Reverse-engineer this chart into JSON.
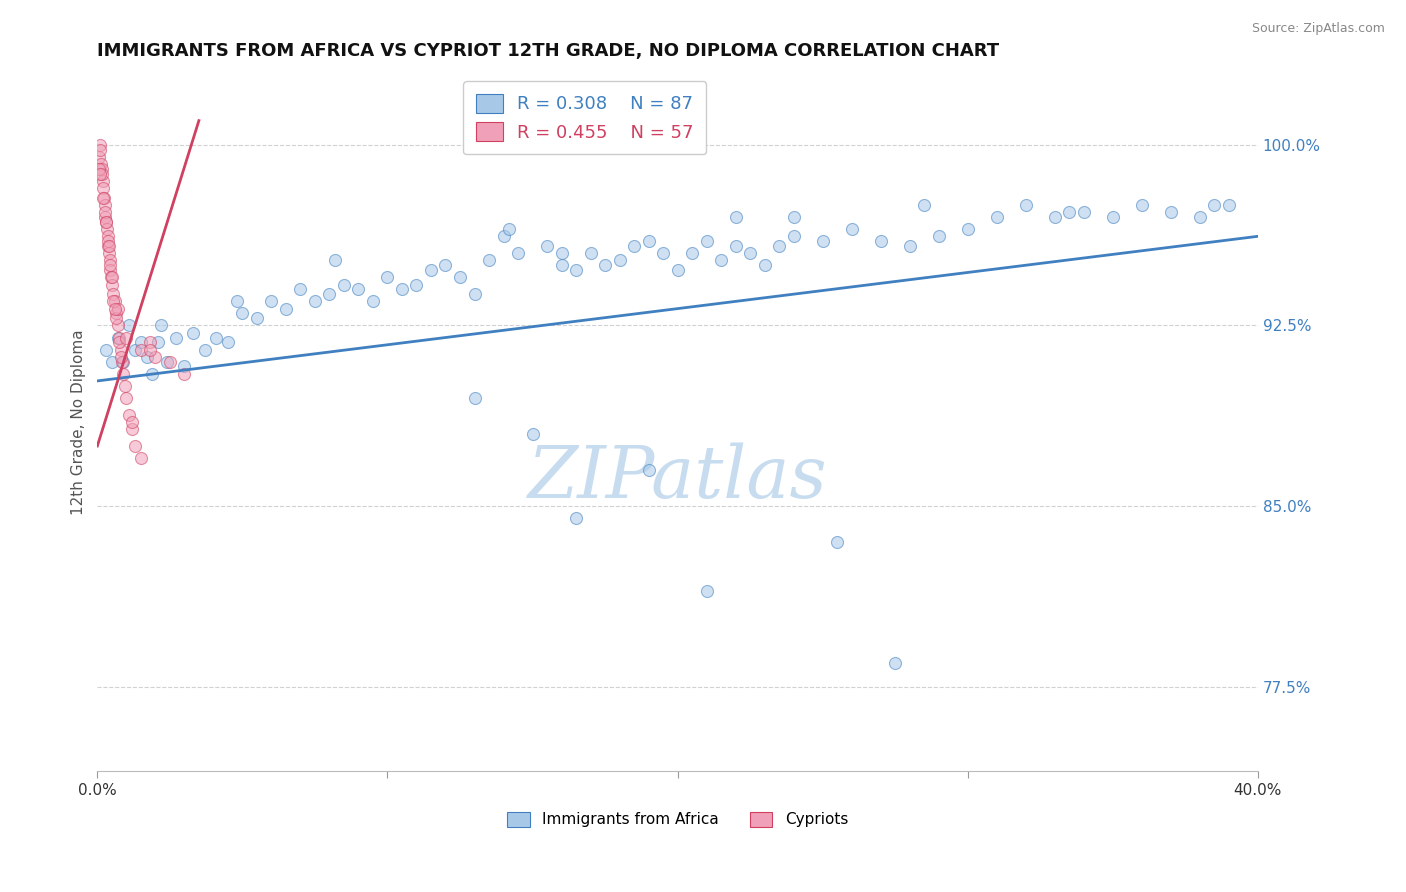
{
  "title": "IMMIGRANTS FROM AFRICA VS CYPRIOT 12TH GRADE, NO DIPLOMA CORRELATION CHART",
  "source": "Source: ZipAtlas.com",
  "ylabel": "12th Grade, No Diploma",
  "legend_blue_r": "R = 0.308",
  "legend_blue_n": "N = 87",
  "legend_pink_r": "R = 0.455",
  "legend_pink_n": "N = 57",
  "legend_blue_label": "Immigrants from Africa",
  "legend_pink_label": "Cypriots",
  "watermark": "ZIPatlas",
  "y_ticks": [
    77.5,
    85.0,
    92.5,
    100.0
  ],
  "y_tick_labels": [
    "77.5%",
    "85.0%",
    "92.5%",
    "100.0%"
  ],
  "x_ticks": [
    0.0,
    10.0,
    20.0,
    30.0,
    40.0
  ],
  "xlim": [
    0.0,
    40.0
  ],
  "ylim": [
    74.0,
    103.0
  ],
  "blue_scatter_x": [
    0.3,
    0.5,
    0.7,
    0.9,
    1.1,
    1.3,
    1.5,
    1.7,
    1.9,
    2.1,
    2.4,
    2.7,
    3.0,
    3.3,
    3.7,
    4.1,
    4.5,
    5.0,
    5.5,
    6.0,
    6.5,
    7.0,
    7.5,
    8.0,
    8.5,
    9.0,
    9.5,
    10.0,
    10.5,
    11.0,
    11.5,
    12.0,
    12.5,
    13.0,
    13.5,
    14.0,
    14.5,
    15.0,
    15.5,
    16.0,
    16.5,
    17.0,
    17.5,
    18.0,
    18.5,
    19.0,
    19.5,
    20.0,
    20.5,
    21.0,
    21.5,
    22.0,
    22.5,
    23.0,
    23.5,
    24.0,
    25.0,
    26.0,
    27.0,
    28.0,
    29.0,
    30.0,
    31.0,
    32.0,
    33.0,
    34.0,
    35.0,
    36.0,
    37.0,
    38.0,
    39.0,
    2.2,
    4.8,
    8.2,
    14.2,
    22.0,
    28.5,
    33.5,
    38.5,
    16.0,
    24.0,
    16.5,
    21.0,
    27.5,
    13.0,
    19.0,
    25.5
  ],
  "blue_scatter_y": [
    91.5,
    91.0,
    92.0,
    91.0,
    92.5,
    91.5,
    91.8,
    91.2,
    90.5,
    91.8,
    91.0,
    92.0,
    90.8,
    92.2,
    91.5,
    92.0,
    91.8,
    93.0,
    92.8,
    93.5,
    93.2,
    94.0,
    93.5,
    93.8,
    94.2,
    94.0,
    93.5,
    94.5,
    94.0,
    94.2,
    94.8,
    95.0,
    94.5,
    93.8,
    95.2,
    96.2,
    95.5,
    88.0,
    95.8,
    95.5,
    94.8,
    95.5,
    95.0,
    95.2,
    95.8,
    96.0,
    95.5,
    94.8,
    95.5,
    96.0,
    95.2,
    95.8,
    95.5,
    95.0,
    95.8,
    96.2,
    96.0,
    96.5,
    96.0,
    95.8,
    96.2,
    96.5,
    97.0,
    97.5,
    97.0,
    97.2,
    97.0,
    97.5,
    97.2,
    97.0,
    97.5,
    92.5,
    93.5,
    95.2,
    96.5,
    97.0,
    97.5,
    97.2,
    97.5,
    95.0,
    97.0,
    84.5,
    81.5,
    78.5,
    89.5,
    86.5,
    83.5
  ],
  "pink_scatter_x": [
    0.05,
    0.08,
    0.1,
    0.12,
    0.15,
    0.18,
    0.2,
    0.22,
    0.25,
    0.28,
    0.3,
    0.32,
    0.35,
    0.38,
    0.4,
    0.42,
    0.45,
    0.48,
    0.5,
    0.55,
    0.6,
    0.65,
    0.7,
    0.75,
    0.8,
    0.85,
    0.9,
    0.95,
    1.0,
    1.1,
    1.2,
    1.3,
    1.5,
    1.8,
    2.0,
    2.5,
    3.0,
    0.15,
    0.25,
    0.35,
    0.45,
    0.55,
    0.65,
    0.75,
    0.05,
    0.1,
    0.2,
    0.3,
    0.5,
    0.7,
    1.0,
    1.5,
    0.6,
    0.4,
    0.8,
    1.2,
    1.8
  ],
  "pink_scatter_y": [
    99.5,
    100.0,
    99.8,
    99.2,
    99.0,
    98.5,
    98.2,
    97.8,
    97.5,
    97.0,
    96.8,
    96.5,
    96.2,
    95.8,
    95.5,
    95.2,
    94.8,
    94.5,
    94.2,
    93.8,
    93.5,
    93.0,
    92.5,
    92.0,
    91.5,
    91.0,
    90.5,
    90.0,
    89.5,
    88.8,
    88.2,
    87.5,
    87.0,
    91.8,
    91.2,
    91.0,
    90.5,
    98.8,
    97.2,
    96.0,
    95.0,
    93.5,
    92.8,
    91.8,
    99.0,
    98.8,
    97.8,
    96.8,
    94.5,
    93.2,
    92.0,
    91.5,
    93.2,
    95.8,
    91.2,
    88.5,
    91.5
  ],
  "blue_line_x": [
    0.0,
    40.0
  ],
  "blue_line_y": [
    90.2,
    96.2
  ],
  "pink_line_x": [
    0.0,
    3.5
  ],
  "pink_line_y": [
    87.5,
    101.0
  ],
  "blue_color": "#A8C8E8",
  "pink_color": "#F0A0B8",
  "blue_line_color": "#4080C0",
  "pink_line_color": "#D04060",
  "grid_color": "#CCCCCC",
  "title_fontsize": 13,
  "axis_label_fontsize": 11,
  "tick_fontsize": 11,
  "watermark_fontsize": 52,
  "scatter_size": 75,
  "scatter_alpha": 0.55,
  "line_width": 2.0
}
